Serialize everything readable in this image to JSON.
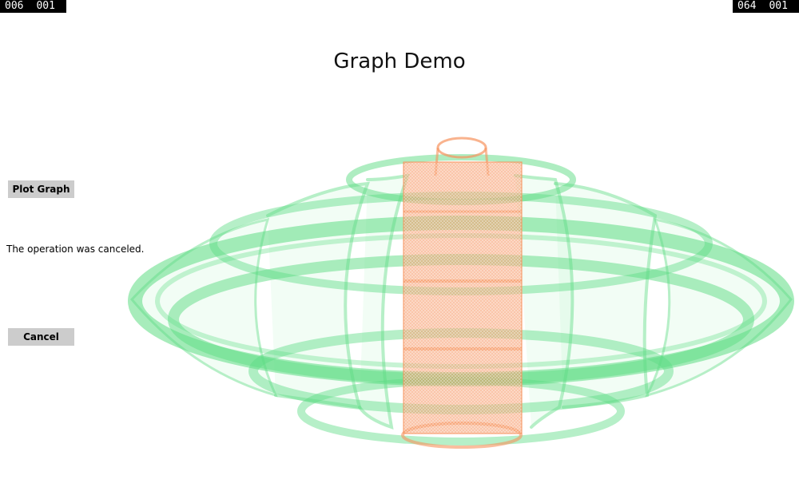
{
  "counters": {
    "left": [
      "006",
      "001"
    ],
    "right": [
      "064",
      "001"
    ]
  },
  "title": "Graph Demo",
  "buttons": {
    "plot_label": "Plot Graph",
    "cancel_label": "Cancel"
  },
  "status_text": "The operation was canceled.",
  "graph": {
    "colors": {
      "primary": "#5edc84",
      "secondary": "#f7935e"
    }
  }
}
